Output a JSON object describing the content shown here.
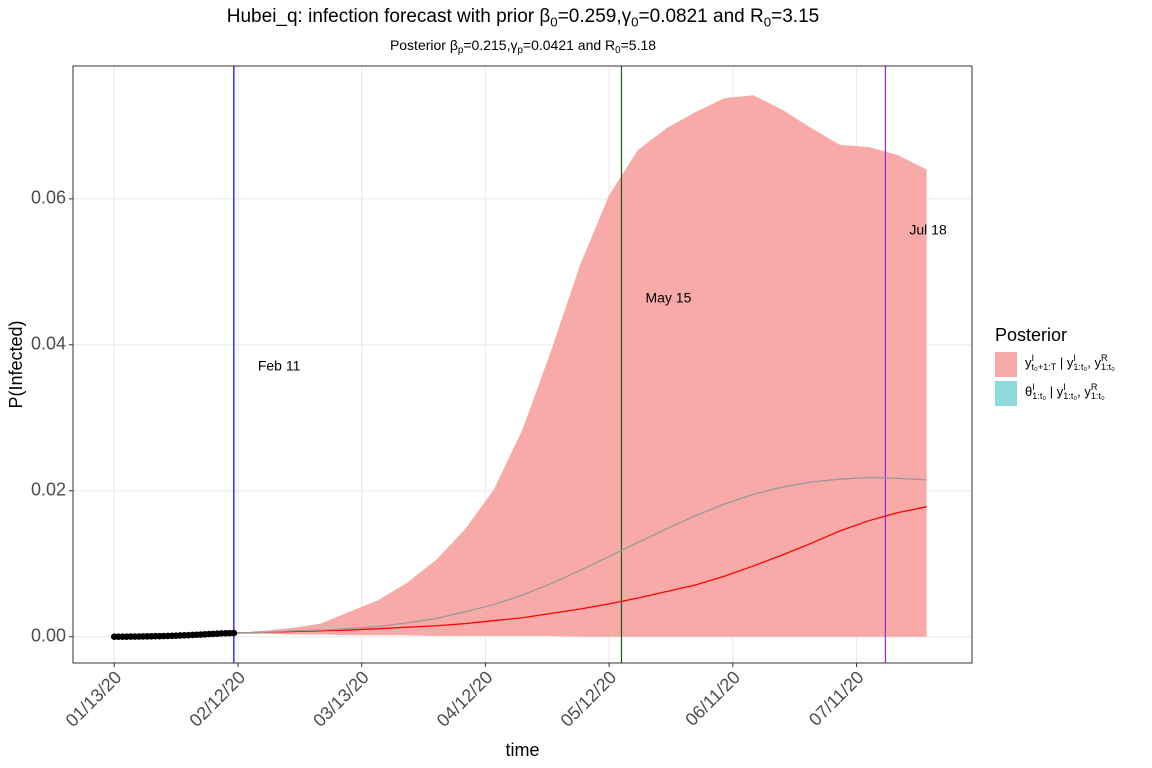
{
  "chart_data": {
    "type": "line",
    "title": [
      {
        "text": "Hubei_q: infection forecast with prior β"
      },
      {
        "sub": "0"
      },
      {
        "text": "=0.259,γ"
      },
      {
        "sub": "0"
      },
      {
        "text": "=0.0821 and R"
      },
      {
        "sub": "0"
      },
      {
        "text": "=3.15"
      }
    ],
    "subtitle": [
      {
        "text": "Posterior β"
      },
      {
        "sub": "p"
      },
      {
        "text": "=0.215,γ"
      },
      {
        "sub": "p"
      },
      {
        "text": "=0.0421 and R"
      },
      {
        "sub": "0"
      },
      {
        "text": "=5.18"
      }
    ],
    "x_label": "time",
    "y_label": "P(Infected)",
    "legend_title": "Posterior",
    "legend": "right",
    "grid": true,
    "xlim": [
      "2020-01-03",
      "2020-08-08"
    ],
    "xticks": [
      {
        "value": "2020-01-13",
        "label": "01/13/20"
      },
      {
        "value": "2020-02-12",
        "label": "02/12/20"
      },
      {
        "value": "2020-03-13",
        "label": "03/13/20"
      },
      {
        "value": "2020-04-12",
        "label": "04/12/20"
      },
      {
        "value": "2020-05-12",
        "label": "05/12/20"
      },
      {
        "value": "2020-06-11",
        "label": "06/11/20"
      },
      {
        "value": "2020-07-11",
        "label": "07/11/20"
      }
    ],
    "ylim": [
      -0.0036,
      0.0782
    ],
    "yticks": [
      {
        "value": 0,
        "label": "0.00"
      },
      {
        "value": 0.02,
        "label": "0.02"
      },
      {
        "value": 0.04,
        "label": "0.04"
      },
      {
        "value": 0.06,
        "label": "0.06"
      }
    ],
    "series": [
      {
        "name": [
          {
            "text": "y"
          },
          {
            "sup": "I"
          },
          {
            "sub": "t₀+1:T"
          },
          {
            "text": " | y"
          },
          {
            "sup": "I"
          },
          {
            "sub": "1:t₀"
          },
          {
            "text": ", y"
          },
          {
            "sup": "R"
          },
          {
            "sub": "1:t₀"
          }
        ],
        "color": "#f8aaa8",
        "type": "ribbon",
        "x": [
          "2020-02-11",
          "2020-02-18",
          "2020-02-25",
          "2020-03-03",
          "2020-03-10",
          "2020-03-17",
          "2020-03-24",
          "2020-03-31",
          "2020-04-07",
          "2020-04-14",
          "2020-04-21",
          "2020-04-28",
          "2020-05-05",
          "2020-05-12",
          "2020-05-19",
          "2020-05-26",
          "2020-06-02",
          "2020-06-09",
          "2020-06-16",
          "2020-06-23",
          "2020-06-30",
          "2020-07-07",
          "2020-07-14",
          "2020-07-21",
          "2020-07-28"
        ],
        "low": [
          0.0004,
          0.0004,
          0.0003,
          0.0003,
          0.0002,
          0.0002,
          0.0002,
          0.0001,
          0.0001,
          0.0001,
          0.0001,
          0.0001,
          0,
          0,
          0,
          0,
          0,
          0,
          0,
          0,
          0,
          0,
          0,
          0,
          0
        ],
        "high": [
          0.0005,
          0.0008,
          0.0012,
          0.0018,
          0.0034,
          0.005,
          0.0074,
          0.0105,
          0.0147,
          0.0201,
          0.0284,
          0.0393,
          0.051,
          0.0605,
          0.0667,
          0.0697,
          0.0719,
          0.0738,
          0.0742,
          0.0722,
          0.0697,
          0.0674,
          0.0671,
          0.066,
          0.064
        ]
      },
      {
        "name": [
          {
            "text": "θ"
          },
          {
            "sup": "I"
          },
          {
            "sub": "1:t₀"
          },
          {
            "text": " | y"
          },
          {
            "sup": "I"
          },
          {
            "sub": "1:t₀"
          },
          {
            "text": ", y"
          },
          {
            "sup": "R"
          },
          {
            "sub": "1:t₀"
          }
        ],
        "color": "#8ed9db",
        "type": "ribbon"
      },
      {
        "type": "line",
        "color": "#ff0000",
        "x": [
          "2020-02-11",
          "2020-02-18",
          "2020-02-25",
          "2020-03-03",
          "2020-03-10",
          "2020-03-17",
          "2020-03-24",
          "2020-03-31",
          "2020-04-07",
          "2020-04-14",
          "2020-04-21",
          "2020-04-28",
          "2020-05-05",
          "2020-05-12",
          "2020-05-19",
          "2020-05-26",
          "2020-06-02",
          "2020-06-09",
          "2020-06-16",
          "2020-06-23",
          "2020-06-30",
          "2020-07-07",
          "2020-07-14",
          "2020-07-21",
          "2020-07-28"
        ],
        "values": [
          0.0005,
          0.0006,
          0.0007,
          0.0008,
          0.0009,
          0.0011,
          0.0013,
          0.0015,
          0.0018,
          0.0022,
          0.0026,
          0.0032,
          0.0038,
          0.0045,
          0.0053,
          0.0062,
          0.0071,
          0.0083,
          0.0097,
          0.0112,
          0.0128,
          0.0145,
          0.0159,
          0.017,
          0.0178
        ]
      },
      {
        "type": "line",
        "color": "#999999",
        "x": [
          "2020-02-11",
          "2020-02-18",
          "2020-02-25",
          "2020-03-03",
          "2020-03-10",
          "2020-03-17",
          "2020-03-24",
          "2020-03-31",
          "2020-04-07",
          "2020-04-14",
          "2020-04-21",
          "2020-04-28",
          "2020-05-05",
          "2020-05-12",
          "2020-05-19",
          "2020-05-26",
          "2020-06-02",
          "2020-06-09",
          "2020-06-16",
          "2020-06-23",
          "2020-06-30",
          "2020-07-07",
          "2020-07-14",
          "2020-07-21",
          "2020-07-28"
        ],
        "values": [
          0.0005,
          0.0006,
          0.0008,
          0.0009,
          0.0011,
          0.0014,
          0.0019,
          0.0025,
          0.0034,
          0.0044,
          0.0057,
          0.0073,
          0.0091,
          0.011,
          0.0129,
          0.0148,
          0.0166,
          0.0182,
          0.0195,
          0.0205,
          0.0212,
          0.0216,
          0.0218,
          0.0217,
          0.0215
        ]
      },
      {
        "type": "scatter",
        "color": "#000000",
        "x": [
          "2020-01-13",
          "2020-01-14",
          "2020-01-15",
          "2020-01-16",
          "2020-01-17",
          "2020-01-18",
          "2020-01-19",
          "2020-01-20",
          "2020-01-21",
          "2020-01-22",
          "2020-01-23",
          "2020-01-24",
          "2020-01-25",
          "2020-01-26",
          "2020-01-27",
          "2020-01-28",
          "2020-01-29",
          "2020-01-30",
          "2020-01-31",
          "2020-02-01",
          "2020-02-02",
          "2020-02-03",
          "2020-02-04",
          "2020-02-05",
          "2020-02-06",
          "2020-02-07",
          "2020-02-08",
          "2020-02-09",
          "2020-02-10",
          "2020-02-11"
        ],
        "values": [
          0,
          0,
          1e-05,
          1e-05,
          2e-05,
          2e-05,
          3e-05,
          4e-05,
          5e-05,
          6e-05,
          7e-05,
          8e-05,
          0.0001,
          0.00011,
          0.00013,
          0.00015,
          0.00017,
          0.00019,
          0.00021,
          0.00024,
          0.00027,
          0.0003,
          0.00033,
          0.00036,
          0.00039,
          0.00042,
          0.00045,
          0.00047,
          0.00049,
          0.0005
        ]
      }
    ],
    "vlines": [
      {
        "x": "2020-02-11",
        "label": "Feb 11",
        "color": "#0000ff"
      },
      {
        "x": "2020-05-15",
        "label": "May 15",
        "color": "#1e5a1e"
      },
      {
        "x": "2020-07-18",
        "label": "Jul 18",
        "color": "#a020f0"
      }
    ]
  }
}
